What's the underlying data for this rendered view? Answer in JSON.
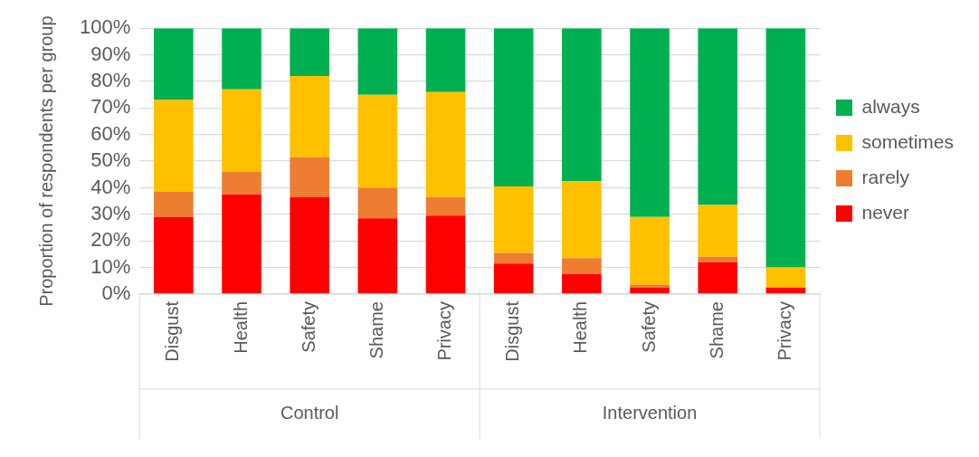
{
  "chart_data": {
    "type": "bar",
    "stacked": true,
    "ylabel": "Proportion of respondents per group",
    "categories": [
      "Disgust",
      "Health",
      "Safety",
      "Shame",
      "Privacy",
      "Disgust",
      "Health",
      "Safety",
      "Shame",
      "Privacy"
    ],
    "annotations": [
      "Control",
      "Intervention"
    ],
    "series": [
      {
        "name": "never",
        "color": "#ff0000",
        "values": [
          29,
          37.5,
          36.5,
          28.5,
          29.5,
          11.5,
          7.5,
          2.5,
          12,
          2.5
        ]
      },
      {
        "name": "rarely",
        "color": "#ed7d31",
        "values": [
          9.5,
          8.5,
          15,
          11.5,
          7,
          4,
          6,
          1,
          2,
          0
        ]
      },
      {
        "name": "sometimes",
        "color": "#ffc000",
        "values": [
          34.5,
          31,
          30.5,
          35,
          39.5,
          25,
          29,
          25.5,
          19.5,
          7.5
        ]
      },
      {
        "name": "always",
        "color": "#00b050",
        "values": [
          27,
          23,
          18,
          25,
          24,
          59.5,
          57.5,
          71,
          66.5,
          90
        ]
      }
    ],
    "ylim": [
      0,
      100
    ],
    "yticks": [
      {
        "value": 0,
        "label": "0%"
      },
      {
        "value": 10,
        "label": "10%"
      },
      {
        "value": 20,
        "label": "20%"
      },
      {
        "value": 30,
        "label": "30%"
      },
      {
        "value": 40,
        "label": "40%"
      },
      {
        "value": 50,
        "label": "50%"
      },
      {
        "value": 60,
        "label": "60%"
      },
      {
        "value": 70,
        "label": "70%"
      },
      {
        "value": 80,
        "label": "80%"
      },
      {
        "value": 90,
        "label": "90%"
      },
      {
        "value": 100,
        "label": "100%"
      }
    ],
    "grid": "y",
    "legend": "right"
  }
}
